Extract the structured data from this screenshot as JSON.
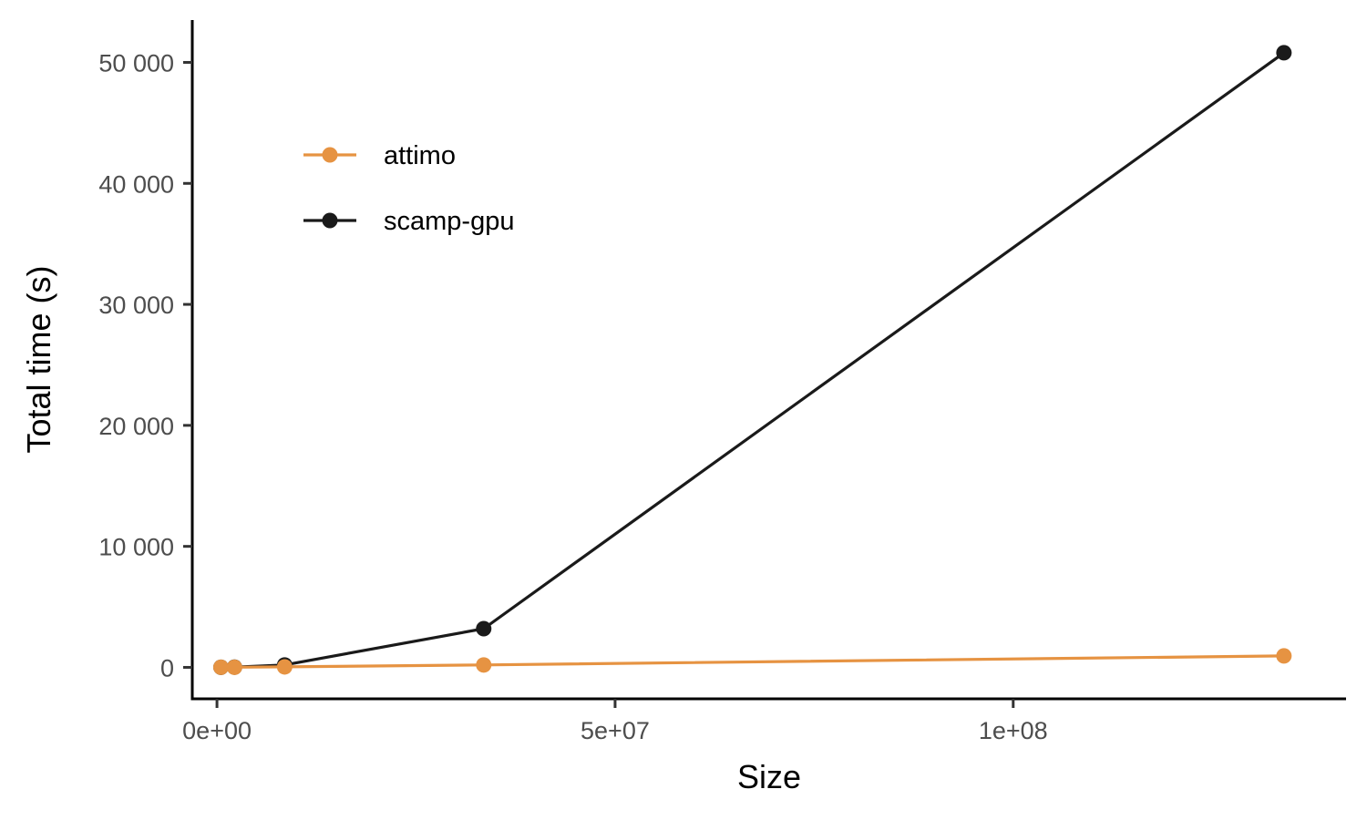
{
  "chart_data": {
    "type": "line",
    "title": "",
    "xlabel": "Size",
    "ylabel": "Total time (s)",
    "xlim": [
      -3100000,
      141800000
    ],
    "ylim": [
      -2600,
      53500
    ],
    "x_ticks": [
      {
        "value": 0,
        "label": "0e+00"
      },
      {
        "value": 50000000,
        "label": "5e+07"
      },
      {
        "value": 100000000,
        "label": "1e+08"
      }
    ],
    "y_ticks": [
      {
        "value": 0,
        "label": "0"
      },
      {
        "value": 10000,
        "label": "10 000"
      },
      {
        "value": 20000,
        "label": "20 000"
      },
      {
        "value": 30000,
        "label": "30 000"
      },
      {
        "value": 40000,
        "label": "40 000"
      },
      {
        "value": 50000,
        "label": "50 000"
      }
    ],
    "grid": false,
    "legend_position": "top-left",
    "series": [
      {
        "name": "scamp-gpu",
        "color": "#1a1a1a",
        "points": [
          {
            "x": 500000,
            "y": 5
          },
          {
            "x": 2200000,
            "y": 20
          },
          {
            "x": 8500000,
            "y": 200
          },
          {
            "x": 33500000,
            "y": 3200
          },
          {
            "x": 134000000,
            "y": 50800
          }
        ]
      },
      {
        "name": "attimo",
        "color": "#e69342",
        "points": [
          {
            "x": 500000,
            "y": 5
          },
          {
            "x": 2200000,
            "y": 10
          },
          {
            "x": 8500000,
            "y": 40
          },
          {
            "x": 33500000,
            "y": 200
          },
          {
            "x": 134000000,
            "y": 950
          }
        ]
      }
    ],
    "legend": [
      {
        "name": "attimo",
        "color": "#e69342"
      },
      {
        "name": "scamp-gpu",
        "color": "#1a1a1a"
      }
    ]
  }
}
